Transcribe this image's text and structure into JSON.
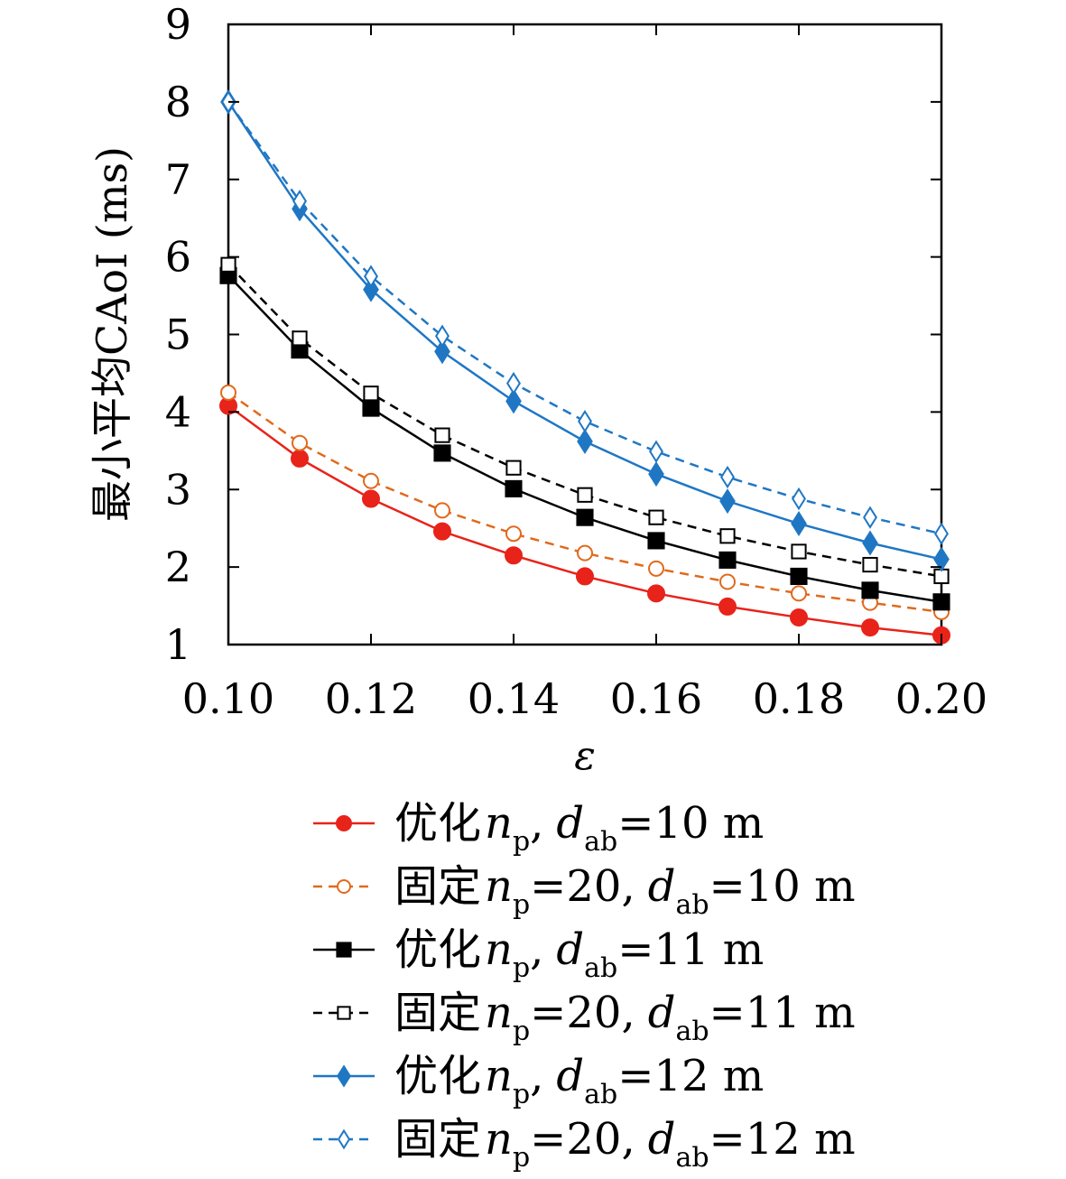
{
  "chart_data": {
    "type": "line",
    "title": "",
    "xlabel": "ε",
    "ylabel": "最小平均CAoI (ms)",
    "xlim": [
      0.1,
      0.2
    ],
    "ylim": [
      1,
      9
    ],
    "xticks": [
      "0.10",
      "0.12",
      "0.14",
      "0.16",
      "0.18",
      "0.20"
    ],
    "yticks": [
      "1",
      "2",
      "3",
      "4",
      "5",
      "6",
      "7",
      "8",
      "9"
    ],
    "grid": false,
    "legend_position": "below",
    "x": [
      0.1,
      0.11,
      0.12,
      0.13,
      0.14,
      0.15,
      0.16,
      0.17,
      0.18,
      0.19,
      0.2
    ],
    "series": [
      {
        "label_main": "优化",
        "label_var": "n",
        "label_sub": "p",
        "label_eq": "",
        "label_d": "d",
        "label_dsub": "ab",
        "label_rest": "=10 m",
        "color": "#e8231a",
        "dash": false,
        "marker": "circle",
        "filled": true,
        "values": [
          4.08,
          3.4,
          2.88,
          2.46,
          2.15,
          1.88,
          1.66,
          1.49,
          1.35,
          1.22,
          1.12
        ]
      },
      {
        "label_main": "固定",
        "label_var": "n",
        "label_sub": "p",
        "label_eq": "=20",
        "label_d": "d",
        "label_dsub": "ab",
        "label_rest": "=10 m",
        "color": "#e06a1d",
        "dash": true,
        "marker": "circle",
        "filled": false,
        "values": [
          4.25,
          3.6,
          3.11,
          2.73,
          2.43,
          2.18,
          1.98,
          1.81,
          1.66,
          1.54,
          1.42
        ]
      },
      {
        "label_main": "优化",
        "label_var": "n",
        "label_sub": "p",
        "label_eq": "",
        "label_d": "d",
        "label_dsub": "ab",
        "label_rest": "=11 m",
        "color": "#000000",
        "dash": false,
        "marker": "square",
        "filled": true,
        "values": [
          5.76,
          4.8,
          4.05,
          3.47,
          3.01,
          2.64,
          2.34,
          2.09,
          1.88,
          1.7,
          1.55
        ]
      },
      {
        "label_main": "固定",
        "label_var": "n",
        "label_sub": "p",
        "label_eq": "=20",
        "label_d": "d",
        "label_dsub": "ab",
        "label_rest": "=11 m",
        "color": "#000000",
        "dash": true,
        "marker": "square",
        "filled": false,
        "values": [
          5.9,
          4.95,
          4.24,
          3.7,
          3.28,
          2.93,
          2.64,
          2.4,
          2.2,
          2.03,
          1.88
        ]
      },
      {
        "label_main": "优化",
        "label_var": "n",
        "label_sub": "p",
        "label_eq": "",
        "label_d": "d",
        "label_dsub": "ab",
        "label_rest": "=12 m",
        "color": "#1f77c4",
        "dash": false,
        "marker": "diamond",
        "filled": true,
        "values": [
          8.0,
          6.62,
          5.58,
          4.78,
          4.14,
          3.62,
          3.2,
          2.85,
          2.56,
          2.31,
          2.1
        ]
      },
      {
        "label_main": "固定",
        "label_var": "n",
        "label_sub": "p",
        "label_eq": "=20",
        "label_d": "d",
        "label_dsub": "ab",
        "label_rest": "=12 m",
        "color": "#1f77c4",
        "dash": true,
        "marker": "diamond",
        "filled": false,
        "values": [
          8.0,
          6.72,
          5.75,
          4.98,
          4.37,
          3.88,
          3.49,
          3.16,
          2.88,
          2.64,
          2.43
        ]
      }
    ]
  }
}
